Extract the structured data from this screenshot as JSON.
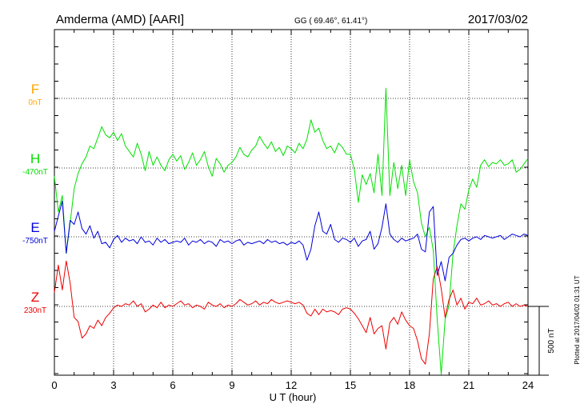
{
  "header": {
    "station": "Amderma (AMD)  [AARI]",
    "coords": "GG ( 69.46°,  61.41°)",
    "date": "2017/03/02"
  },
  "footer": {
    "plotted": "Plotted at 2017/04/02 01:31  UT"
  },
  "chart_data": {
    "type": "line",
    "xlabel": "U T (hour)",
    "xlim": [
      0,
      24
    ],
    "x_ticks": [
      "0",
      "3",
      "6",
      "9",
      "12",
      "15",
      "18",
      "21",
      "24"
    ],
    "grid": true,
    "scale_bar_label": "500 nT",
    "series": [
      {
        "name": "F",
        "baseline_label": "0nT",
        "color": "#ffa500",
        "x": [],
        "values": []
      },
      {
        "name": "H",
        "baseline_label": "-470nT",
        "color": "#00e000",
        "x": [
          0,
          0.2,
          0.4,
          0.6,
          0.8,
          1.0,
          1.2,
          1.4,
          1.6,
          1.8,
          2.0,
          2.2,
          2.4,
          2.6,
          2.8,
          3.0,
          3.2,
          3.4,
          3.6,
          3.8,
          4.0,
          4.2,
          4.4,
          4.6,
          4.8,
          5.0,
          5.2,
          5.4,
          5.6,
          5.8,
          6.0,
          6.2,
          6.4,
          6.6,
          6.8,
          7.0,
          7.2,
          7.4,
          7.6,
          7.8,
          8.0,
          8.2,
          8.4,
          8.6,
          8.8,
          9.0,
          9.2,
          9.4,
          9.6,
          9.8,
          10.0,
          10.2,
          10.4,
          10.6,
          10.8,
          11.0,
          11.2,
          11.4,
          11.6,
          11.8,
          12.0,
          12.2,
          12.4,
          12.6,
          12.8,
          13.0,
          13.2,
          13.4,
          13.6,
          13.8,
          14.0,
          14.2,
          14.4,
          14.6,
          14.8,
          15.0,
          15.2,
          15.4,
          15.6,
          15.8,
          16.0,
          16.2,
          16.4,
          16.6,
          16.8,
          17.0,
          17.2,
          17.4,
          17.6,
          17.8,
          18.0,
          18.2,
          18.4,
          18.6,
          18.8,
          19.0,
          19.2,
          19.4,
          19.6,
          19.8,
          20.0,
          20.2,
          20.4,
          20.6,
          20.8,
          21.0,
          21.2,
          21.4,
          21.6,
          21.8,
          22.0,
          22.2,
          22.4,
          22.6,
          22.8,
          23.0,
          23.2,
          23.4,
          23.6,
          23.8,
          24.0
        ],
        "values": [
          -60,
          -320,
          -200,
          -620,
          -400,
          -150,
          -40,
          30,
          80,
          160,
          140,
          220,
          300,
          240,
          220,
          260,
          200,
          250,
          160,
          120,
          80,
          180,
          100,
          -20,
          120,
          20,
          80,
          20,
          -20,
          60,
          100,
          50,
          90,
          -10,
          40,
          110,
          20,
          60,
          120,
          10,
          -60,
          70,
          30,
          -30,
          20,
          40,
          80,
          150,
          100,
          80,
          130,
          160,
          230,
          180,
          140,
          190,
          120,
          150,
          90,
          160,
          140,
          110,
          180,
          140,
          210,
          350,
          260,
          290,
          200,
          140,
          160,
          110,
          180,
          150,
          100,
          100,
          -10,
          -250,
          -50,
          -120,
          -40,
          -180,
          100,
          -200,
          580,
          -200,
          40,
          -150,
          20,
          -200,
          60,
          -100,
          -180,
          -400,
          -500,
          -430,
          -600,
          -1100,
          -1600,
          -1100,
          -1000,
          -620,
          -420,
          -260,
          -300,
          -160,
          -80,
          -140,
          20,
          60,
          10,
          40,
          30,
          60,
          20,
          30,
          60,
          -30,
          -10,
          30,
          70
        ]
      },
      {
        "name": "E",
        "baseline_label": "-750nT",
        "color": "#0000dd",
        "x": [
          0,
          0.2,
          0.4,
          0.6,
          0.8,
          1.0,
          1.2,
          1.4,
          1.6,
          1.8,
          2.0,
          2.2,
          2.4,
          2.6,
          2.8,
          3.0,
          3.2,
          3.4,
          3.6,
          3.8,
          4.0,
          4.2,
          4.4,
          4.6,
          4.8,
          5.0,
          5.2,
          5.4,
          5.6,
          5.8,
          6.0,
          6.2,
          6.4,
          6.6,
          6.8,
          7.0,
          7.2,
          7.4,
          7.6,
          7.8,
          8.0,
          8.2,
          8.4,
          8.6,
          8.8,
          9.0,
          9.2,
          9.4,
          9.6,
          9.8,
          10.0,
          10.2,
          10.4,
          10.6,
          10.8,
          11.0,
          11.2,
          11.4,
          11.6,
          11.8,
          12.0,
          12.2,
          12.4,
          12.6,
          12.8,
          13.0,
          13.2,
          13.4,
          13.6,
          13.8,
          14.0,
          14.2,
          14.4,
          14.6,
          14.8,
          15.0,
          15.2,
          15.4,
          15.6,
          15.8,
          16.0,
          16.2,
          16.4,
          16.6,
          16.8,
          17.0,
          17.2,
          17.4,
          17.6,
          17.8,
          18.0,
          18.2,
          18.4,
          18.6,
          18.8,
          19.0,
          19.2,
          19.4,
          19.6,
          19.8,
          20.0,
          20.2,
          20.4,
          20.6,
          20.8,
          21.0,
          21.2,
          21.4,
          21.6,
          21.8,
          22.0,
          22.2,
          22.4,
          22.6,
          22.8,
          23.0,
          23.2,
          23.4,
          23.6,
          23.8,
          24.0
        ],
        "values": [
          40,
          150,
          260,
          -120,
          120,
          90,
          180,
          60,
          20,
          80,
          -10,
          40,
          -50,
          -40,
          -80,
          -20,
          10,
          -40,
          -10,
          -30,
          -20,
          -50,
          0,
          -40,
          -30,
          -60,
          -10,
          -40,
          -20,
          -50,
          -40,
          -30,
          -40,
          -10,
          -60,
          -30,
          -40,
          -20,
          -50,
          -30,
          -40,
          -70,
          -20,
          -40,
          -30,
          -50,
          -30,
          -20,
          -60,
          -40,
          -50,
          -40,
          -30,
          -50,
          -20,
          -40,
          -30,
          -50,
          -40,
          -60,
          -40,
          -50,
          -30,
          -60,
          -170,
          -90,
          80,
          180,
          40,
          20,
          90,
          -20,
          -40,
          -10,
          -20,
          -40,
          -10,
          -70,
          -30,
          -20,
          40,
          -90,
          -50,
          70,
          240,
          20,
          -20,
          -40,
          -10,
          -30,
          -20,
          -10,
          20,
          -90,
          -110,
          180,
          220,
          -280,
          -180,
          -320,
          -150,
          -120,
          -60,
          -20,
          -10,
          -30,
          -10,
          0,
          -20,
          10,
          0,
          -10,
          0,
          10,
          -20,
          0,
          20,
          10,
          0,
          20,
          10
        ]
      },
      {
        "name": "Z",
        "baseline_label": "230nT",
        "color": "#ee0000",
        "x": [
          0,
          0.2,
          0.4,
          0.6,
          0.8,
          1.0,
          1.2,
          1.4,
          1.6,
          1.8,
          2.0,
          2.2,
          2.4,
          2.6,
          2.8,
          3.0,
          3.2,
          3.4,
          3.6,
          3.8,
          4.0,
          4.2,
          4.4,
          4.6,
          4.8,
          5.0,
          5.2,
          5.4,
          5.6,
          5.8,
          6.0,
          6.2,
          6.4,
          6.6,
          6.8,
          7.0,
          7.2,
          7.4,
          7.6,
          7.8,
          8.0,
          8.2,
          8.4,
          8.6,
          8.8,
          9.0,
          9.2,
          9.4,
          9.6,
          9.8,
          10.0,
          10.2,
          10.4,
          10.6,
          10.8,
          11.0,
          11.2,
          11.4,
          11.6,
          11.8,
          12.0,
          12.2,
          12.4,
          12.6,
          12.8,
          13.0,
          13.2,
          13.4,
          13.6,
          13.8,
          14.0,
          14.2,
          14.4,
          14.6,
          14.8,
          15.0,
          15.2,
          15.4,
          15.6,
          15.8,
          16.0,
          16.2,
          16.4,
          16.6,
          16.8,
          17.0,
          17.2,
          17.4,
          17.6,
          17.8,
          18.0,
          18.2,
          18.4,
          18.6,
          18.8,
          19.0,
          19.2,
          19.4,
          19.6,
          19.8,
          20.0,
          20.2,
          20.4,
          20.6,
          20.8,
          21.0,
          21.2,
          21.4,
          21.6,
          21.8,
          22.0,
          22.2,
          22.4,
          22.6,
          22.8,
          23.0,
          23.2,
          23.4,
          23.6,
          23.8,
          24.0
        ],
        "values": [
          100,
          300,
          120,
          330,
          170,
          -80,
          -110,
          -230,
          -200,
          -140,
          -160,
          -100,
          -140,
          -80,
          -50,
          -10,
          10,
          0,
          20,
          10,
          40,
          0,
          20,
          -40,
          -20,
          10,
          -10,
          30,
          -10,
          10,
          0,
          20,
          40,
          10,
          20,
          -10,
          10,
          0,
          -20,
          30,
          10,
          0,
          20,
          -10,
          10,
          0,
          20,
          50,
          30,
          10,
          20,
          40,
          10,
          30,
          20,
          50,
          30,
          20,
          30,
          40,
          30,
          20,
          30,
          10,
          -50,
          -70,
          -20,
          -60,
          -20,
          -40,
          -30,
          -40,
          -60,
          -20,
          -10,
          -20,
          -50,
          -90,
          -140,
          -190,
          -80,
          -200,
          -160,
          -140,
          -310,
          -120,
          -80,
          -130,
          -40,
          -100,
          -140,
          -160,
          -250,
          -380,
          -420,
          -200,
          200,
          290,
          130,
          -80,
          50,
          120,
          10,
          60,
          -20,
          30,
          20,
          60,
          10,
          20,
          40,
          10,
          20,
          0,
          20,
          30,
          0,
          20,
          0,
          10,
          0
        ]
      }
    ]
  }
}
